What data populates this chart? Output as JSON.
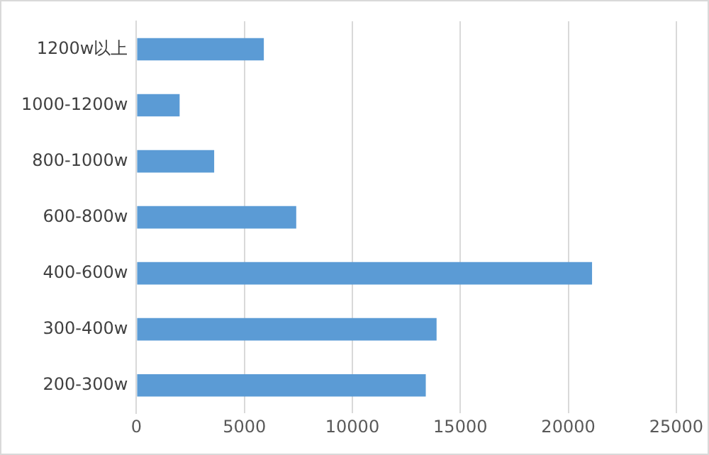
{
  "chart_data": {
    "type": "bar",
    "orientation": "horizontal",
    "categories": [
      "1200w以上",
      "1000-1200w",
      "800-1000w",
      "600-800w",
      "400-600w",
      "300-400w",
      "200-300w"
    ],
    "values": [
      5900,
      2000,
      3600,
      7400,
      21100,
      13900,
      13400
    ],
    "color": "#5b9bd5",
    "xlim": [
      0,
      25000
    ],
    "xticks": [
      0,
      5000,
      10000,
      15000,
      20000,
      25000
    ],
    "grid": "x",
    "legend": false
  }
}
